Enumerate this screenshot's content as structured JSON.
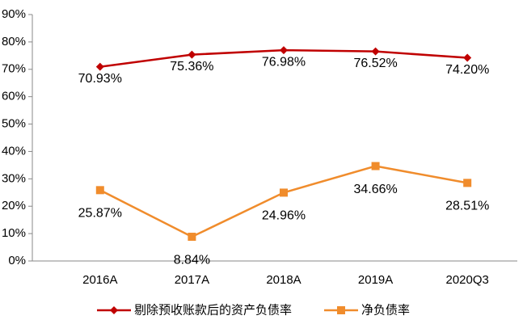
{
  "chart_data": {
    "type": "line",
    "categories": [
      "2016A",
      "2017A",
      "2018A",
      "2019A",
      "2020Q3"
    ],
    "series": [
      {
        "name": "剔除预收账款后的资产负债率",
        "color": "#c00000",
        "marker": "diamond",
        "values": [
          70.93,
          75.36,
          76.98,
          76.52,
          74.2
        ],
        "value_labels": [
          "70.93%",
          "75.36%",
          "76.98%",
          "76.52%",
          "74.20%"
        ]
      },
      {
        "name": "净负债率",
        "color": "#f08c2c",
        "marker": "square",
        "values": [
          25.87,
          8.84,
          24.96,
          34.66,
          28.51
        ],
        "value_labels": [
          "25.87%",
          "8.84%",
          "24.96%",
          "34.66%",
          "28.51%"
        ]
      }
    ],
    "ylim": [
      0,
      90
    ],
    "yticks": [
      {
        "value": 0,
        "label": "0%"
      },
      {
        "value": 10,
        "label": "10%"
      },
      {
        "value": 20,
        "label": "20%"
      },
      {
        "value": 30,
        "label": "30%"
      },
      {
        "value": 40,
        "label": "40%"
      },
      {
        "value": 50,
        "label": "50%"
      },
      {
        "value": 60,
        "label": "60%"
      },
      {
        "value": 70,
        "label": "70%"
      },
      {
        "value": 80,
        "label": "80%"
      },
      {
        "value": 90,
        "label": "90%"
      }
    ],
    "grid": false,
    "legend": "bottom"
  }
}
